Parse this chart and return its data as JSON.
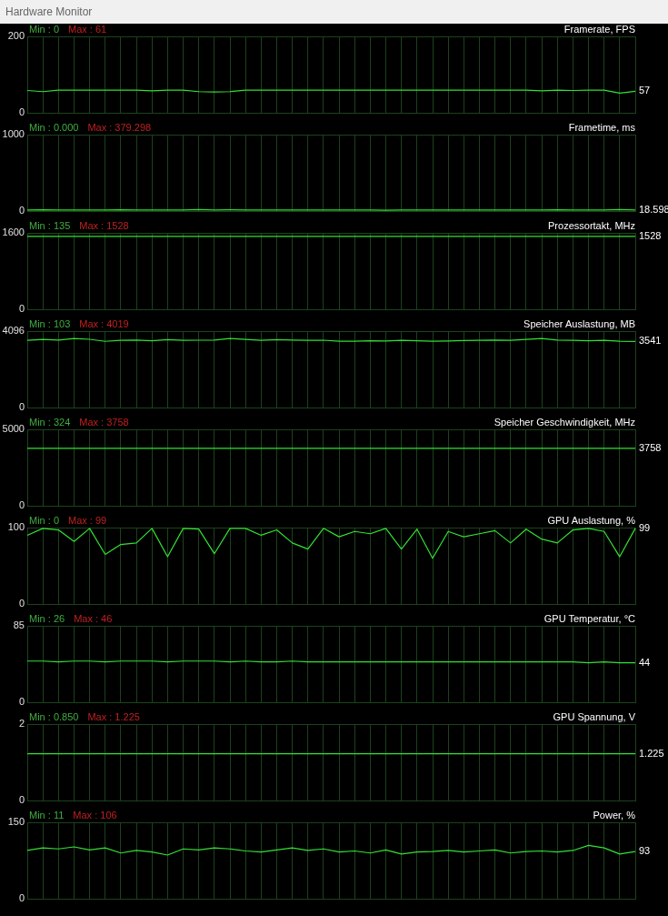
{
  "chart_data": [
    {
      "type": "line",
      "subtitle": "Hardware Monitor",
      "title": "Framerate, FPS",
      "categories": [
        null,
        null,
        null,
        null,
        null,
        null,
        null,
        null,
        null,
        null,
        null,
        null,
        null,
        null,
        null,
        null,
        null,
        null,
        null,
        null,
        null,
        null,
        null,
        null,
        null,
        null,
        null,
        null,
        null,
        null,
        null,
        null,
        null,
        null,
        null,
        null,
        null,
        null,
        null,
        null
      ],
      "series": [
        {
          "color": "#33e033",
          "values": [
            59,
            56,
            60,
            60,
            60,
            60,
            60,
            60,
            58,
            60,
            60,
            56,
            55,
            56,
            60,
            60,
            60,
            60,
            60,
            60,
            60,
            60,
            60,
            60,
            60,
            60,
            60,
            60,
            60,
            60,
            60,
            60,
            60,
            58,
            60,
            59,
            60,
            60,
            52,
            57
          ]
        }
      ],
      "ylim": [
        0,
        200
      ],
      "yticks": [
        0,
        200
      ],
      "grid": true,
      "tick_labels": "y",
      "annotations": [
        "Min : 0",
        "Max : 61",
        "57"
      ]
    },
    {
      "type": "line",
      "title": "Frametime, ms",
      "categories": [
        null,
        null,
        null,
        null,
        null,
        null,
        null,
        null,
        null,
        null,
        null,
        null,
        null,
        null,
        null,
        null,
        null,
        null,
        null,
        null,
        null,
        null,
        null,
        null,
        null,
        null,
        null,
        null,
        null,
        null,
        null,
        null,
        null,
        null,
        null,
        null,
        null,
        null,
        null,
        null
      ],
      "series": [
        {
          "color": "#33e033",
          "values": [
            18,
            22,
            17,
            19,
            17,
            18,
            21,
            17,
            18,
            17,
            19,
            24,
            18,
            21,
            17,
            18,
            17,
            19,
            18,
            17,
            17,
            18,
            17,
            16,
            17,
            18,
            17,
            17,
            18,
            17,
            17,
            19,
            17,
            18,
            21,
            18,
            17,
            18,
            24,
            18.598
          ]
        }
      ],
      "ylim": [
        0,
        1000
      ],
      "yticks": [
        0,
        1000
      ],
      "grid": true,
      "tick_labels": "y",
      "annotations": [
        "Min : 0.000",
        "Max : 379.298",
        "18.598"
      ]
    },
    {
      "type": "line",
      "title": "Prozessortakt, MHz",
      "categories": [
        null,
        null,
        null,
        null,
        null,
        null,
        null,
        null,
        null,
        null,
        null,
        null,
        null,
        null,
        null,
        null,
        null,
        null,
        null,
        null,
        null,
        null,
        null,
        null,
        null,
        null,
        null,
        null,
        null,
        null,
        null,
        null,
        null,
        null,
        null,
        null,
        null,
        null,
        null,
        null
      ],
      "series": [
        {
          "color": "#33e033",
          "values": [
            1528,
            1528,
            1528,
            1528,
            1528,
            1528,
            1528,
            1528,
            1528,
            1528,
            1528,
            1528,
            1528,
            1528,
            1528,
            1528,
            1528,
            1528,
            1528,
            1528,
            1528,
            1528,
            1528,
            1528,
            1528,
            1528,
            1528,
            1528,
            1528,
            1528,
            1528,
            1528,
            1528,
            1528,
            1528,
            1528,
            1528,
            1528,
            1528,
            1528
          ]
        }
      ],
      "ylim": [
        0,
        1600
      ],
      "yticks": [
        0,
        1600
      ],
      "grid": true,
      "tick_labels": "y",
      "annotations": [
        "Min : 135",
        "Max : 1528",
        "1528"
      ]
    },
    {
      "type": "line",
      "title": "Speicher Auslastung, MB",
      "categories": [
        null,
        null,
        null,
        null,
        null,
        null,
        null,
        null,
        null,
        null,
        null,
        null,
        null,
        null,
        null,
        null,
        null,
        null,
        null,
        null,
        null,
        null,
        null,
        null,
        null,
        null,
        null,
        null,
        null,
        null,
        null,
        null,
        null,
        null,
        null,
        null,
        null,
        null,
        null,
        null
      ],
      "series": [
        {
          "color": "#33e033",
          "values": [
            3600,
            3650,
            3620,
            3700,
            3660,
            3550,
            3600,
            3620,
            3580,
            3640,
            3600,
            3610,
            3620,
            3700,
            3650,
            3600,
            3640,
            3620,
            3600,
            3610,
            3560,
            3560,
            3580,
            3570,
            3600,
            3580,
            3560,
            3570,
            3590,
            3600,
            3620,
            3600,
            3650,
            3700,
            3620,
            3600,
            3580,
            3600,
            3560,
            3541
          ]
        }
      ],
      "ylim": [
        0,
        4096
      ],
      "yticks": [
        0,
        4096
      ],
      "grid": true,
      "tick_labels": "y",
      "annotations": [
        "Min : 103",
        "Max : 4019",
        "3541"
      ]
    },
    {
      "type": "line",
      "title": "Speicher Geschwindigkeit, MHz",
      "categories": [
        null,
        null,
        null,
        null,
        null,
        null,
        null,
        null,
        null,
        null,
        null,
        null,
        null,
        null,
        null,
        null,
        null,
        null,
        null,
        null,
        null,
        null,
        null,
        null,
        null,
        null,
        null,
        null,
        null,
        null,
        null,
        null,
        null,
        null,
        null,
        null,
        null,
        null,
        null,
        null
      ],
      "series": [
        {
          "color": "#33e033",
          "values": [
            3758,
            3758,
            3758,
            3758,
            3758,
            3758,
            3758,
            3758,
            3758,
            3758,
            3758,
            3758,
            3758,
            3758,
            3758,
            3758,
            3758,
            3758,
            3758,
            3758,
            3758,
            3758,
            3758,
            3758,
            3758,
            3758,
            3758,
            3758,
            3758,
            3758,
            3758,
            3758,
            3758,
            3758,
            3758,
            3758,
            3758,
            3758,
            3758,
            3758
          ]
        }
      ],
      "ylim": [
        0,
        5000
      ],
      "yticks": [
        0,
        5000
      ],
      "grid": true,
      "tick_labels": "y",
      "annotations": [
        "Min : 324",
        "Max : 3758",
        "3758"
      ]
    },
    {
      "type": "line",
      "title": "GPU Auslastung, %",
      "categories": [
        null,
        null,
        null,
        null,
        null,
        null,
        null,
        null,
        null,
        null,
        null,
        null,
        null,
        null,
        null,
        null,
        null,
        null,
        null,
        null,
        null,
        null,
        null,
        null,
        null,
        null,
        null,
        null,
        null,
        null,
        null,
        null,
        null,
        null,
        null,
        null,
        null,
        null,
        null,
        null
      ],
      "series": [
        {
          "color": "#33e033",
          "values": [
            90,
            99,
            97,
            82,
            99,
            65,
            78,
            80,
            99,
            62,
            99,
            98,
            66,
            99,
            99,
            90,
            97,
            80,
            72,
            99,
            88,
            95,
            92,
            99,
            72,
            98,
            60,
            95,
            88,
            92,
            96,
            80,
            98,
            85,
            80,
            97,
            99,
            95,
            62,
            99
          ]
        }
      ],
      "ylim": [
        0,
        100
      ],
      "yticks": [
        0,
        100
      ],
      "grid": true,
      "tick_labels": "y",
      "annotations": [
        "Min : 0",
        "Max : 99",
        "99"
      ]
    },
    {
      "type": "line",
      "title": "GPU Temperatur, °C",
      "categories": [
        null,
        null,
        null,
        null,
        null,
        null,
        null,
        null,
        null,
        null,
        null,
        null,
        null,
        null,
        null,
        null,
        null,
        null,
        null,
        null,
        null,
        null,
        null,
        null,
        null,
        null,
        null,
        null,
        null,
        null,
        null,
        null,
        null,
        null,
        null,
        null,
        null,
        null,
        null,
        null
      ],
      "series": [
        {
          "color": "#33e033",
          "values": [
            46,
            46,
            45,
            46,
            46,
            45,
            46,
            46,
            46,
            45,
            46,
            46,
            46,
            45,
            46,
            45,
            45,
            46,
            45,
            45,
            45,
            45,
            45,
            45,
            45,
            45,
            45,
            45,
            45,
            45,
            45,
            45,
            45,
            45,
            45,
            45,
            44,
            45,
            44,
            44
          ]
        }
      ],
      "ylim": [
        0,
        85
      ],
      "yticks": [
        0,
        85
      ],
      "grid": true,
      "tick_labels": "y",
      "annotations": [
        "Min : 26",
        "Max : 46",
        "44"
      ]
    },
    {
      "type": "line",
      "title": "GPU Spannung, V",
      "categories": [
        null,
        null,
        null,
        null,
        null,
        null,
        null,
        null,
        null,
        null,
        null,
        null,
        null,
        null,
        null,
        null,
        null,
        null,
        null,
        null,
        null,
        null,
        null,
        null,
        null,
        null,
        null,
        null,
        null,
        null,
        null,
        null,
        null,
        null,
        null,
        null,
        null,
        null,
        null,
        null
      ],
      "series": [
        {
          "color": "#33e033",
          "values": [
            1.225,
            1.225,
            1.225,
            1.225,
            1.225,
            1.225,
            1.225,
            1.225,
            1.225,
            1.225,
            1.225,
            1.225,
            1.225,
            1.225,
            1.225,
            1.225,
            1.225,
            1.225,
            1.225,
            1.225,
            1.225,
            1.225,
            1.225,
            1.225,
            1.225,
            1.225,
            1.225,
            1.225,
            1.225,
            1.225,
            1.225,
            1.225,
            1.225,
            1.225,
            1.225,
            1.225,
            1.225,
            1.225,
            1.225,
            1.225
          ]
        }
      ],
      "ylim": [
        0,
        2
      ],
      "yticks": [
        0,
        2
      ],
      "grid": true,
      "tick_labels": "y",
      "annotations": [
        "Min : 0.850",
        "Max : 1.225",
        "1.225"
      ]
    },
    {
      "type": "line",
      "title": "Power, %",
      "categories": [
        null,
        null,
        null,
        null,
        null,
        null,
        null,
        null,
        null,
        null,
        null,
        null,
        null,
        null,
        null,
        null,
        null,
        null,
        null,
        null,
        null,
        null,
        null,
        null,
        null,
        null,
        null,
        null,
        null,
        null,
        null,
        null,
        null,
        null,
        null,
        null,
        null,
        null,
        null,
        null
      ],
      "series": [
        {
          "color": "#33e033",
          "values": [
            95,
            100,
            98,
            102,
            96,
            100,
            90,
            95,
            92,
            86,
            98,
            96,
            100,
            98,
            94,
            92,
            96,
            100,
            95,
            98,
            92,
            94,
            90,
            96,
            88,
            92,
            93,
            95,
            92,
            94,
            96,
            90,
            93,
            94,
            92,
            95,
            105,
            100,
            88,
            93
          ]
        }
      ],
      "ylim": [
        0,
        150
      ],
      "yticks": [
        0,
        150
      ],
      "grid": true,
      "tick_labels": "y",
      "annotations": [
        "Min : 11",
        "Max : 106",
        "93"
      ]
    }
  ]
}
